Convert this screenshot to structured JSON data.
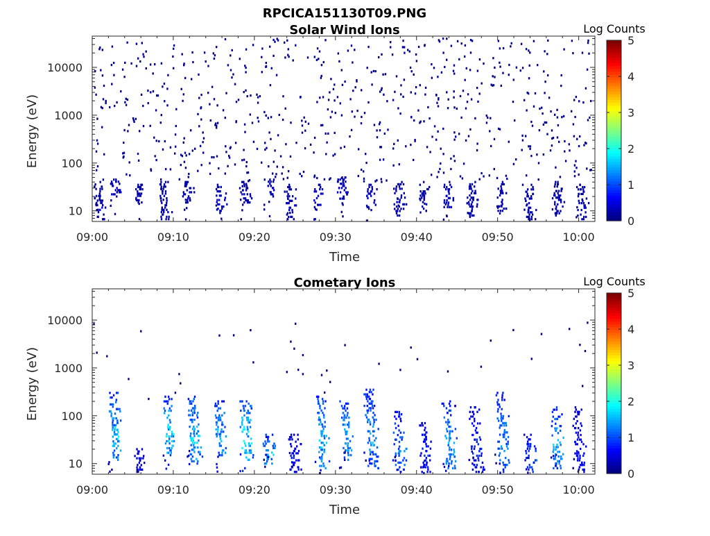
{
  "figure": {
    "title": "RPCICA151130T09.PNG"
  },
  "chart_data": [
    {
      "type": "heatmap",
      "title": "Solar Wind Ions",
      "xlabel": "Time",
      "ylabel": "Energy (eV)",
      "x_ticks": [
        "09:00",
        "09:10",
        "09:20",
        "09:30",
        "09:40",
        "09:50",
        "10:00"
      ],
      "x_range_minutes": [
        0,
        62
      ],
      "y_scale": "log",
      "y_ticks": [
        "10",
        "100",
        "1000",
        "10000"
      ],
      "y_range_ev": [
        6,
        45000
      ],
      "colorbar": {
        "label": "Log Counts",
        "ticks": [
          "0",
          "1",
          "2",
          "3",
          "4",
          "5"
        ],
        "range": [
          0,
          5
        ],
        "colormap": "jet"
      },
      "clusters": [
        {
          "t": 0.5,
          "e_low": 6,
          "e_high": 40,
          "level": 0.3
        },
        {
          "t": 2.5,
          "e_low": 20,
          "e_high": 45,
          "level": 0.4
        },
        {
          "t": 5.5,
          "e_low": 15,
          "e_high": 35,
          "level": 0.3
        },
        {
          "t": 8.5,
          "e_low": 6,
          "e_high": 40,
          "level": 0.3
        },
        {
          "t": 11.5,
          "e_low": 15,
          "e_high": 40,
          "level": 0.3
        },
        {
          "t": 15.5,
          "e_low": 10,
          "e_high": 35,
          "level": 0.4
        },
        {
          "t": 18.5,
          "e_low": 15,
          "e_high": 40,
          "level": 0.3
        },
        {
          "t": 21.5,
          "e_low": 20,
          "e_high": 45,
          "level": 0.4
        },
        {
          "t": 24,
          "e_low": 6,
          "e_high": 35,
          "level": 0.3
        },
        {
          "t": 27.5,
          "e_low": 12,
          "e_high": 35,
          "level": 0.4
        },
        {
          "t": 30.5,
          "e_low": 18,
          "e_high": 50,
          "level": 0.4
        },
        {
          "t": 34,
          "e_low": 12,
          "e_high": 35,
          "level": 0.4
        },
        {
          "t": 37.5,
          "e_low": 8,
          "e_high": 40,
          "level": 0.3
        },
        {
          "t": 40.5,
          "e_low": 10,
          "e_high": 35,
          "level": 0.3
        },
        {
          "t": 43.5,
          "e_low": 12,
          "e_high": 35,
          "level": 0.4
        },
        {
          "t": 46.5,
          "e_low": 8,
          "e_high": 40,
          "level": 0.3
        },
        {
          "t": 50,
          "e_low": 10,
          "e_high": 40,
          "level": 0.3
        },
        {
          "t": 53.5,
          "e_low": 6,
          "e_high": 35,
          "level": 0.3
        },
        {
          "t": 57,
          "e_low": 8,
          "e_high": 40,
          "level": 0.3
        },
        {
          "t": 60,
          "e_low": 6,
          "e_high": 35,
          "level": 0.3
        }
      ],
      "sparse_background": {
        "count": 700,
        "e_low": 40,
        "e_high": 40000,
        "level": 0.2
      }
    },
    {
      "type": "heatmap",
      "title": "Cometary Ions",
      "xlabel": "Time",
      "ylabel": "Energy (eV)",
      "x_ticks": [
        "09:00",
        "09:10",
        "09:20",
        "09:30",
        "09:40",
        "09:50",
        "10:00"
      ],
      "x_range_minutes": [
        0,
        62
      ],
      "y_scale": "log",
      "y_ticks": [
        "10",
        "100",
        "1000",
        "10000"
      ],
      "y_range_ev": [
        6,
        45000
      ],
      "colorbar": {
        "label": "Log Counts",
        "ticks": [
          "0",
          "1",
          "2",
          "3",
          "4",
          "5"
        ],
        "range": [
          0,
          5
        ],
        "colormap": "jet"
      },
      "clusters": [
        {
          "t": 2.3,
          "e_low": 12,
          "e_high": 300,
          "level": 1.6
        },
        {
          "t": 5.5,
          "e_low": 6,
          "e_high": 20,
          "level": 0.5
        },
        {
          "t": 9.0,
          "e_low": 15,
          "e_high": 250,
          "level": 1.7
        },
        {
          "t": 12.0,
          "e_low": 10,
          "e_high": 250,
          "level": 1.6
        },
        {
          "t": 15.3,
          "e_low": 15,
          "e_high": 200,
          "level": 1.5
        },
        {
          "t": 18.5,
          "e_low": 12,
          "e_high": 200,
          "level": 1.8
        },
        {
          "t": 21.3,
          "e_low": 10,
          "e_high": 40,
          "level": 1.5
        },
        {
          "t": 24.5,
          "e_low": 6,
          "e_high": 40,
          "level": 0.7
        },
        {
          "t": 27.8,
          "e_low": 8,
          "e_high": 250,
          "level": 1.6
        },
        {
          "t": 30.8,
          "e_low": 12,
          "e_high": 200,
          "level": 1.5
        },
        {
          "t": 33.8,
          "e_low": 8,
          "e_high": 350,
          "level": 1.4
        },
        {
          "t": 37.3,
          "e_low": 6,
          "e_high": 120,
          "level": 1.2
        },
        {
          "t": 40.5,
          "e_low": 6,
          "e_high": 70,
          "level": 0.8
        },
        {
          "t": 43.5,
          "e_low": 8,
          "e_high": 200,
          "level": 1.4
        },
        {
          "t": 46.8,
          "e_low": 6,
          "e_high": 150,
          "level": 0.8
        },
        {
          "t": 50.0,
          "e_low": 6,
          "e_high": 300,
          "level": 1.3
        },
        {
          "t": 53.5,
          "e_low": 6,
          "e_high": 40,
          "level": 1.0
        },
        {
          "t": 56.8,
          "e_low": 8,
          "e_high": 150,
          "level": 1.5
        },
        {
          "t": 59.5,
          "e_low": 6,
          "e_high": 150,
          "level": 0.7
        }
      ],
      "sparse_background": {
        "count": 40,
        "e_low": 200,
        "e_high": 9000,
        "level": 0.1
      }
    }
  ]
}
